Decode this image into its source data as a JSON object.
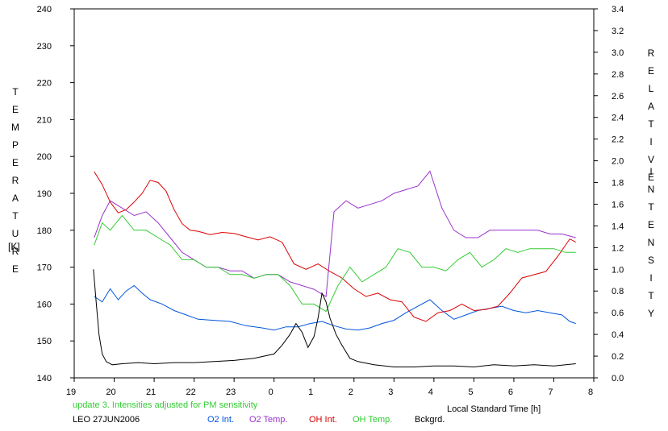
{
  "chart_data": {
    "type": "line",
    "x_axis": {
      "label": "Local Standard Time [h]",
      "ticks": [
        "19",
        "20",
        "21",
        "22",
        "23",
        "0",
        "1",
        "2",
        "3",
        "4",
        "5",
        "6",
        "7",
        "8"
      ],
      "range_hours": [
        19,
        32
      ]
    },
    "y_left": {
      "label_letters": [
        "T",
        "E",
        "M",
        "P",
        "E",
        "R",
        "A",
        "T",
        "U",
        "R",
        "E"
      ],
      "unit": "[K]",
      "range": [
        140,
        240
      ],
      "ticks": [
        "140",
        "150",
        "160",
        "170",
        "180",
        "190",
        "200",
        "210",
        "220",
        "230",
        "240"
      ]
    },
    "y_right": {
      "label_letters_1": [
        "R",
        "E",
        "L",
        "A",
        "T",
        "I",
        "V",
        "E"
      ],
      "label_letters_2": [
        "I",
        "N",
        "T",
        "E",
        "N",
        "S",
        "I",
        "T",
        "Y"
      ],
      "range": [
        0.0,
        3.4
      ],
      "ticks": [
        "0.0",
        "0.2",
        "0.4",
        "0.6",
        "0.8",
        "1.0",
        "1.2",
        "1.4",
        "1.6",
        "1.8",
        "2.0",
        "2.2",
        "2.4",
        "2.6",
        "2.8",
        "3.0",
        "3.2",
        "3.4"
      ]
    },
    "note": "update 3. Intensities adjusted for PM sensitivity",
    "station": "LEO 27JUN2006",
    "series": [
      {
        "name": "O2 Int.",
        "color": "#0055dd",
        "axis": "right",
        "x": [
          19.5,
          19.7,
          19.9,
          20.1,
          20.3,
          20.5,
          20.7,
          20.9,
          21.2,
          21.5,
          21.8,
          22.1,
          22.5,
          22.9,
          23.3,
          23.7,
          24.0,
          24.3,
          24.6,
          24.9,
          25.2,
          25.5,
          25.8,
          26.1,
          26.4,
          26.7,
          27.0,
          27.3,
          27.6,
          27.9,
          28.2,
          28.5,
          28.8,
          29.1,
          29.4,
          29.7,
          30.0,
          30.3,
          30.6,
          30.9,
          31.2,
          31.4,
          31.55
        ],
        "y": [
          0.75,
          0.7,
          0.82,
          0.72,
          0.8,
          0.85,
          0.78,
          0.72,
          0.68,
          0.62,
          0.58,
          0.54,
          0.53,
          0.52,
          0.48,
          0.46,
          0.44,
          0.47,
          0.47,
          0.5,
          0.52,
          0.48,
          0.45,
          0.44,
          0.46,
          0.5,
          0.53,
          0.6,
          0.66,
          0.72,
          0.62,
          0.54,
          0.58,
          0.62,
          0.64,
          0.66,
          0.62,
          0.6,
          0.62,
          0.6,
          0.58,
          0.52,
          0.5
        ]
      },
      {
        "name": "O2 Temp.",
        "color": "#9933cc",
        "axis": "left",
        "x": [
          19.5,
          19.7,
          19.9,
          20.2,
          20.5,
          20.8,
          21.1,
          21.4,
          21.7,
          22.0,
          22.3,
          22.6,
          22.9,
          23.2,
          23.5,
          23.8,
          24.1,
          24.4,
          24.7,
          25.0,
          25.3,
          25.5,
          25.8,
          26.1,
          26.4,
          26.7,
          27.0,
          27.3,
          27.6,
          27.9,
          28.2,
          28.5,
          28.8,
          29.1,
          29.4,
          29.7,
          30.0,
          30.3,
          30.6,
          30.9,
          31.2,
          31.55
        ],
        "y": [
          178,
          184,
          188,
          186,
          184,
          185,
          182,
          178,
          174,
          172,
          170,
          170,
          169,
          169,
          167,
          168,
          168,
          166,
          165,
          164,
          162,
          185,
          188,
          186,
          187,
          188,
          190,
          191,
          192,
          196,
          186,
          180,
          178,
          178,
          180,
          180,
          180,
          180,
          180,
          179,
          179,
          178
        ]
      },
      {
        "name": "OH Int.",
        "color": "#dd0000",
        "axis": "right",
        "x": [
          19.5,
          19.7,
          19.9,
          20.1,
          20.3,
          20.5,
          20.7,
          20.9,
          21.1,
          21.3,
          21.5,
          21.7,
          21.9,
          22.1,
          22.4,
          22.7,
          23.0,
          23.3,
          23.6,
          23.9,
          24.2,
          24.5,
          24.8,
          25.1,
          25.4,
          25.7,
          26.0,
          26.3,
          26.6,
          26.9,
          27.2,
          27.5,
          27.8,
          28.1,
          28.4,
          28.7,
          29.0,
          29.3,
          29.6,
          29.9,
          30.2,
          30.5,
          30.8,
          31.1,
          31.4,
          31.55
        ],
        "y": [
          1.9,
          1.78,
          1.62,
          1.52,
          1.55,
          1.62,
          1.7,
          1.82,
          1.8,
          1.72,
          1.55,
          1.42,
          1.36,
          1.35,
          1.32,
          1.34,
          1.33,
          1.3,
          1.27,
          1.3,
          1.25,
          1.05,
          1.0,
          1.05,
          0.98,
          0.92,
          0.82,
          0.75,
          0.78,
          0.72,
          0.7,
          0.56,
          0.52,
          0.6,
          0.62,
          0.68,
          0.62,
          0.63,
          0.66,
          0.78,
          0.92,
          0.95,
          0.98,
          1.12,
          1.28,
          1.25
        ]
      },
      {
        "name": "OH Temp.",
        "color": "#33cc33",
        "axis": "left",
        "x": [
          19.5,
          19.7,
          19.9,
          20.2,
          20.5,
          20.8,
          21.1,
          21.4,
          21.7,
          22.0,
          22.3,
          22.6,
          22.9,
          23.2,
          23.5,
          23.8,
          24.1,
          24.4,
          24.7,
          25.0,
          25.3,
          25.6,
          25.9,
          26.2,
          26.5,
          26.8,
          27.1,
          27.4,
          27.7,
          28.0,
          28.3,
          28.6,
          28.9,
          29.2,
          29.5,
          29.8,
          30.1,
          30.4,
          30.7,
          31.0,
          31.3,
          31.55
        ],
        "y": [
          176,
          182,
          180,
          184,
          180,
          180,
          178,
          176,
          172,
          172,
          170,
          170,
          168,
          168,
          167,
          168,
          168,
          165,
          160,
          160,
          158,
          165,
          170,
          166,
          168,
          170,
          175,
          174,
          170,
          170,
          169,
          172,
          174,
          170,
          172,
          175,
          174,
          175,
          175,
          175,
          174,
          174
        ]
      },
      {
        "name": "Bckgrd.",
        "color": "#000000",
        "axis": "right",
        "x": [
          19.48,
          19.55,
          19.62,
          19.7,
          19.8,
          19.95,
          20.2,
          20.6,
          21.0,
          21.5,
          22.0,
          22.5,
          23.0,
          23.5,
          24.0,
          24.2,
          24.4,
          24.55,
          24.7,
          24.85,
          25.0,
          25.1,
          25.2,
          25.3,
          25.4,
          25.55,
          25.7,
          25.9,
          26.1,
          26.5,
          27.0,
          27.5,
          28.0,
          28.5,
          29.0,
          29.5,
          30.0,
          30.5,
          31.0,
          31.55
        ],
        "y": [
          1.0,
          0.7,
          0.4,
          0.22,
          0.15,
          0.12,
          0.13,
          0.14,
          0.13,
          0.14,
          0.14,
          0.15,
          0.16,
          0.18,
          0.22,
          0.3,
          0.4,
          0.5,
          0.42,
          0.28,
          0.38,
          0.55,
          0.78,
          0.7,
          0.55,
          0.4,
          0.3,
          0.18,
          0.15,
          0.12,
          0.1,
          0.1,
          0.11,
          0.11,
          0.1,
          0.12,
          0.11,
          0.12,
          0.11,
          0.13
        ]
      }
    ]
  }
}
